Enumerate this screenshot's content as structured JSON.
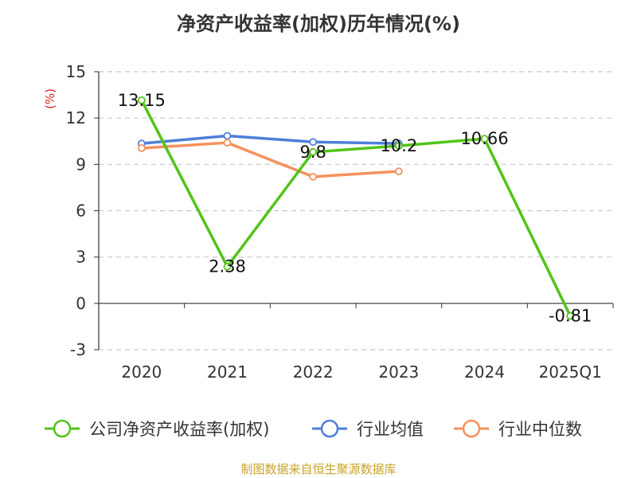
{
  "chart_data": {
    "type": "line",
    "title": "净资产收益率(加权)历年情况(%)",
    "ylabel": "(%)",
    "categories": [
      "2020",
      "2021",
      "2022",
      "2023",
      "2024",
      "2025Q1"
    ],
    "ylim": [
      -3,
      15
    ],
    "yticks": [
      -3,
      0,
      3,
      6,
      9,
      12,
      15
    ],
    "grid": true,
    "legend_position": "bottom",
    "series": [
      {
        "name": "公司净资产收益率(加权)",
        "color": "#52c41a",
        "values": [
          13.15,
          2.38,
          9.8,
          10.2,
          10.66,
          -0.81
        ],
        "labels": [
          "13.15",
          "2.38",
          "9.8",
          "10.2",
          "10.66",
          "-0.81"
        ]
      },
      {
        "name": "行业均值",
        "color": "#4e7fd8",
        "values": [
          10.35,
          10.85,
          10.45,
          10.35,
          null,
          null
        ]
      },
      {
        "name": "行业中位数",
        "color": "#f5925e",
        "values": [
          10.05,
          10.4,
          8.2,
          8.55,
          null,
          null
        ]
      }
    ]
  },
  "source_text": "制图数据来自恒生聚源数据库"
}
